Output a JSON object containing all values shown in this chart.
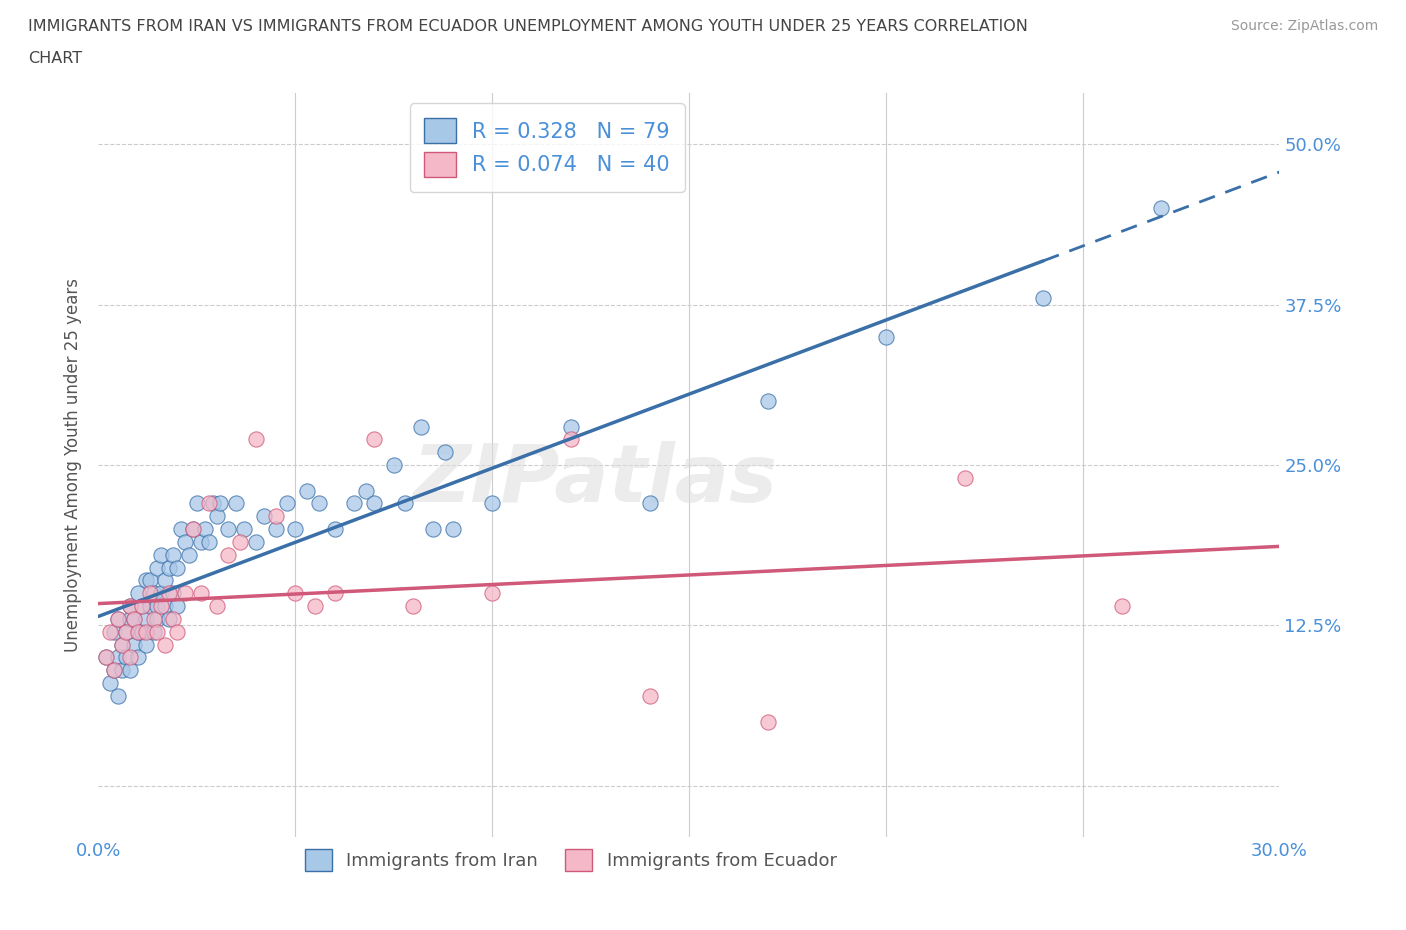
{
  "title_line1": "IMMIGRANTS FROM IRAN VS IMMIGRANTS FROM ECUADOR UNEMPLOYMENT AMONG YOUTH UNDER 25 YEARS CORRELATION",
  "title_line2": "CHART",
  "source": "Source: ZipAtlas.com",
  "ylabel": "Unemployment Among Youth under 25 years",
  "xlim": [
    0.0,
    0.3
  ],
  "ylim": [
    -0.04,
    0.54
  ],
  "ytick_positions": [
    0.0,
    0.125,
    0.25,
    0.375,
    0.5
  ],
  "ytick_labels": [
    "",
    "12.5%",
    "25.0%",
    "37.5%",
    "50.0%"
  ],
  "iran_color": "#a8c8e8",
  "iran_color_line": "#3a6fa8",
  "ecuador_color": "#f4b8c8",
  "ecuador_color_line": "#d05878",
  "legend_label_1": "R = 0.328   N = 79",
  "legend_label_2": "R = 0.074   N = 40",
  "legend_label_iran": "Immigrants from Iran",
  "legend_label_ecuador": "Immigrants from Ecuador",
  "watermark": "ZIPatlas",
  "iran_x": [
    0.002,
    0.003,
    0.004,
    0.004,
    0.005,
    0.005,
    0.005,
    0.006,
    0.006,
    0.007,
    0.007,
    0.008,
    0.008,
    0.008,
    0.009,
    0.009,
    0.01,
    0.01,
    0.01,
    0.011,
    0.011,
    0.012,
    0.012,
    0.012,
    0.013,
    0.013,
    0.014,
    0.014,
    0.015,
    0.015,
    0.015,
    0.016,
    0.016,
    0.017,
    0.017,
    0.018,
    0.018,
    0.019,
    0.019,
    0.02,
    0.02,
    0.021,
    0.022,
    0.023,
    0.024,
    0.025,
    0.026,
    0.027,
    0.028,
    0.029,
    0.03,
    0.031,
    0.033,
    0.035,
    0.037,
    0.04,
    0.042,
    0.045,
    0.048,
    0.05,
    0.053,
    0.056,
    0.06,
    0.065,
    0.068,
    0.07,
    0.075,
    0.078,
    0.082,
    0.085,
    0.088,
    0.09,
    0.1,
    0.12,
    0.14,
    0.17,
    0.2,
    0.24,
    0.27
  ],
  "iran_y": [
    0.1,
    0.08,
    0.09,
    0.12,
    0.1,
    0.13,
    0.07,
    0.11,
    0.09,
    0.12,
    0.1,
    0.13,
    0.09,
    0.14,
    0.11,
    0.13,
    0.12,
    0.1,
    0.15,
    0.12,
    0.14,
    0.11,
    0.16,
    0.13,
    0.14,
    0.16,
    0.12,
    0.15,
    0.14,
    0.17,
    0.13,
    0.15,
    0.18,
    0.14,
    0.16,
    0.13,
    0.17,
    0.15,
    0.18,
    0.14,
    0.17,
    0.2,
    0.19,
    0.18,
    0.2,
    0.22,
    0.19,
    0.2,
    0.19,
    0.22,
    0.21,
    0.22,
    0.2,
    0.22,
    0.2,
    0.19,
    0.21,
    0.2,
    0.22,
    0.2,
    0.23,
    0.22,
    0.2,
    0.22,
    0.23,
    0.22,
    0.25,
    0.22,
    0.28,
    0.2,
    0.26,
    0.2,
    0.22,
    0.28,
    0.22,
    0.3,
    0.35,
    0.38,
    0.45
  ],
  "ecuador_x": [
    0.002,
    0.003,
    0.004,
    0.005,
    0.006,
    0.007,
    0.008,
    0.008,
    0.009,
    0.01,
    0.011,
    0.012,
    0.013,
    0.014,
    0.015,
    0.016,
    0.017,
    0.018,
    0.019,
    0.02,
    0.022,
    0.024,
    0.026,
    0.028,
    0.03,
    0.033,
    0.036,
    0.04,
    0.045,
    0.05,
    0.055,
    0.06,
    0.07,
    0.08,
    0.1,
    0.12,
    0.14,
    0.17,
    0.22,
    0.26
  ],
  "ecuador_y": [
    0.1,
    0.12,
    0.09,
    0.13,
    0.11,
    0.12,
    0.14,
    0.1,
    0.13,
    0.12,
    0.14,
    0.12,
    0.15,
    0.13,
    0.12,
    0.14,
    0.11,
    0.15,
    0.13,
    0.12,
    0.15,
    0.2,
    0.15,
    0.22,
    0.14,
    0.18,
    0.19,
    0.27,
    0.21,
    0.15,
    0.14,
    0.15,
    0.27,
    0.14,
    0.15,
    0.27,
    0.07,
    0.05,
    0.24,
    0.14
  ],
  "background_color": "#ffffff",
  "grid_color": "#cccccc",
  "title_color": "#444444",
  "axis_label_color": "#555555",
  "tick_label_color": "#4a90d9",
  "legend_text_color": "#4a90d9"
}
